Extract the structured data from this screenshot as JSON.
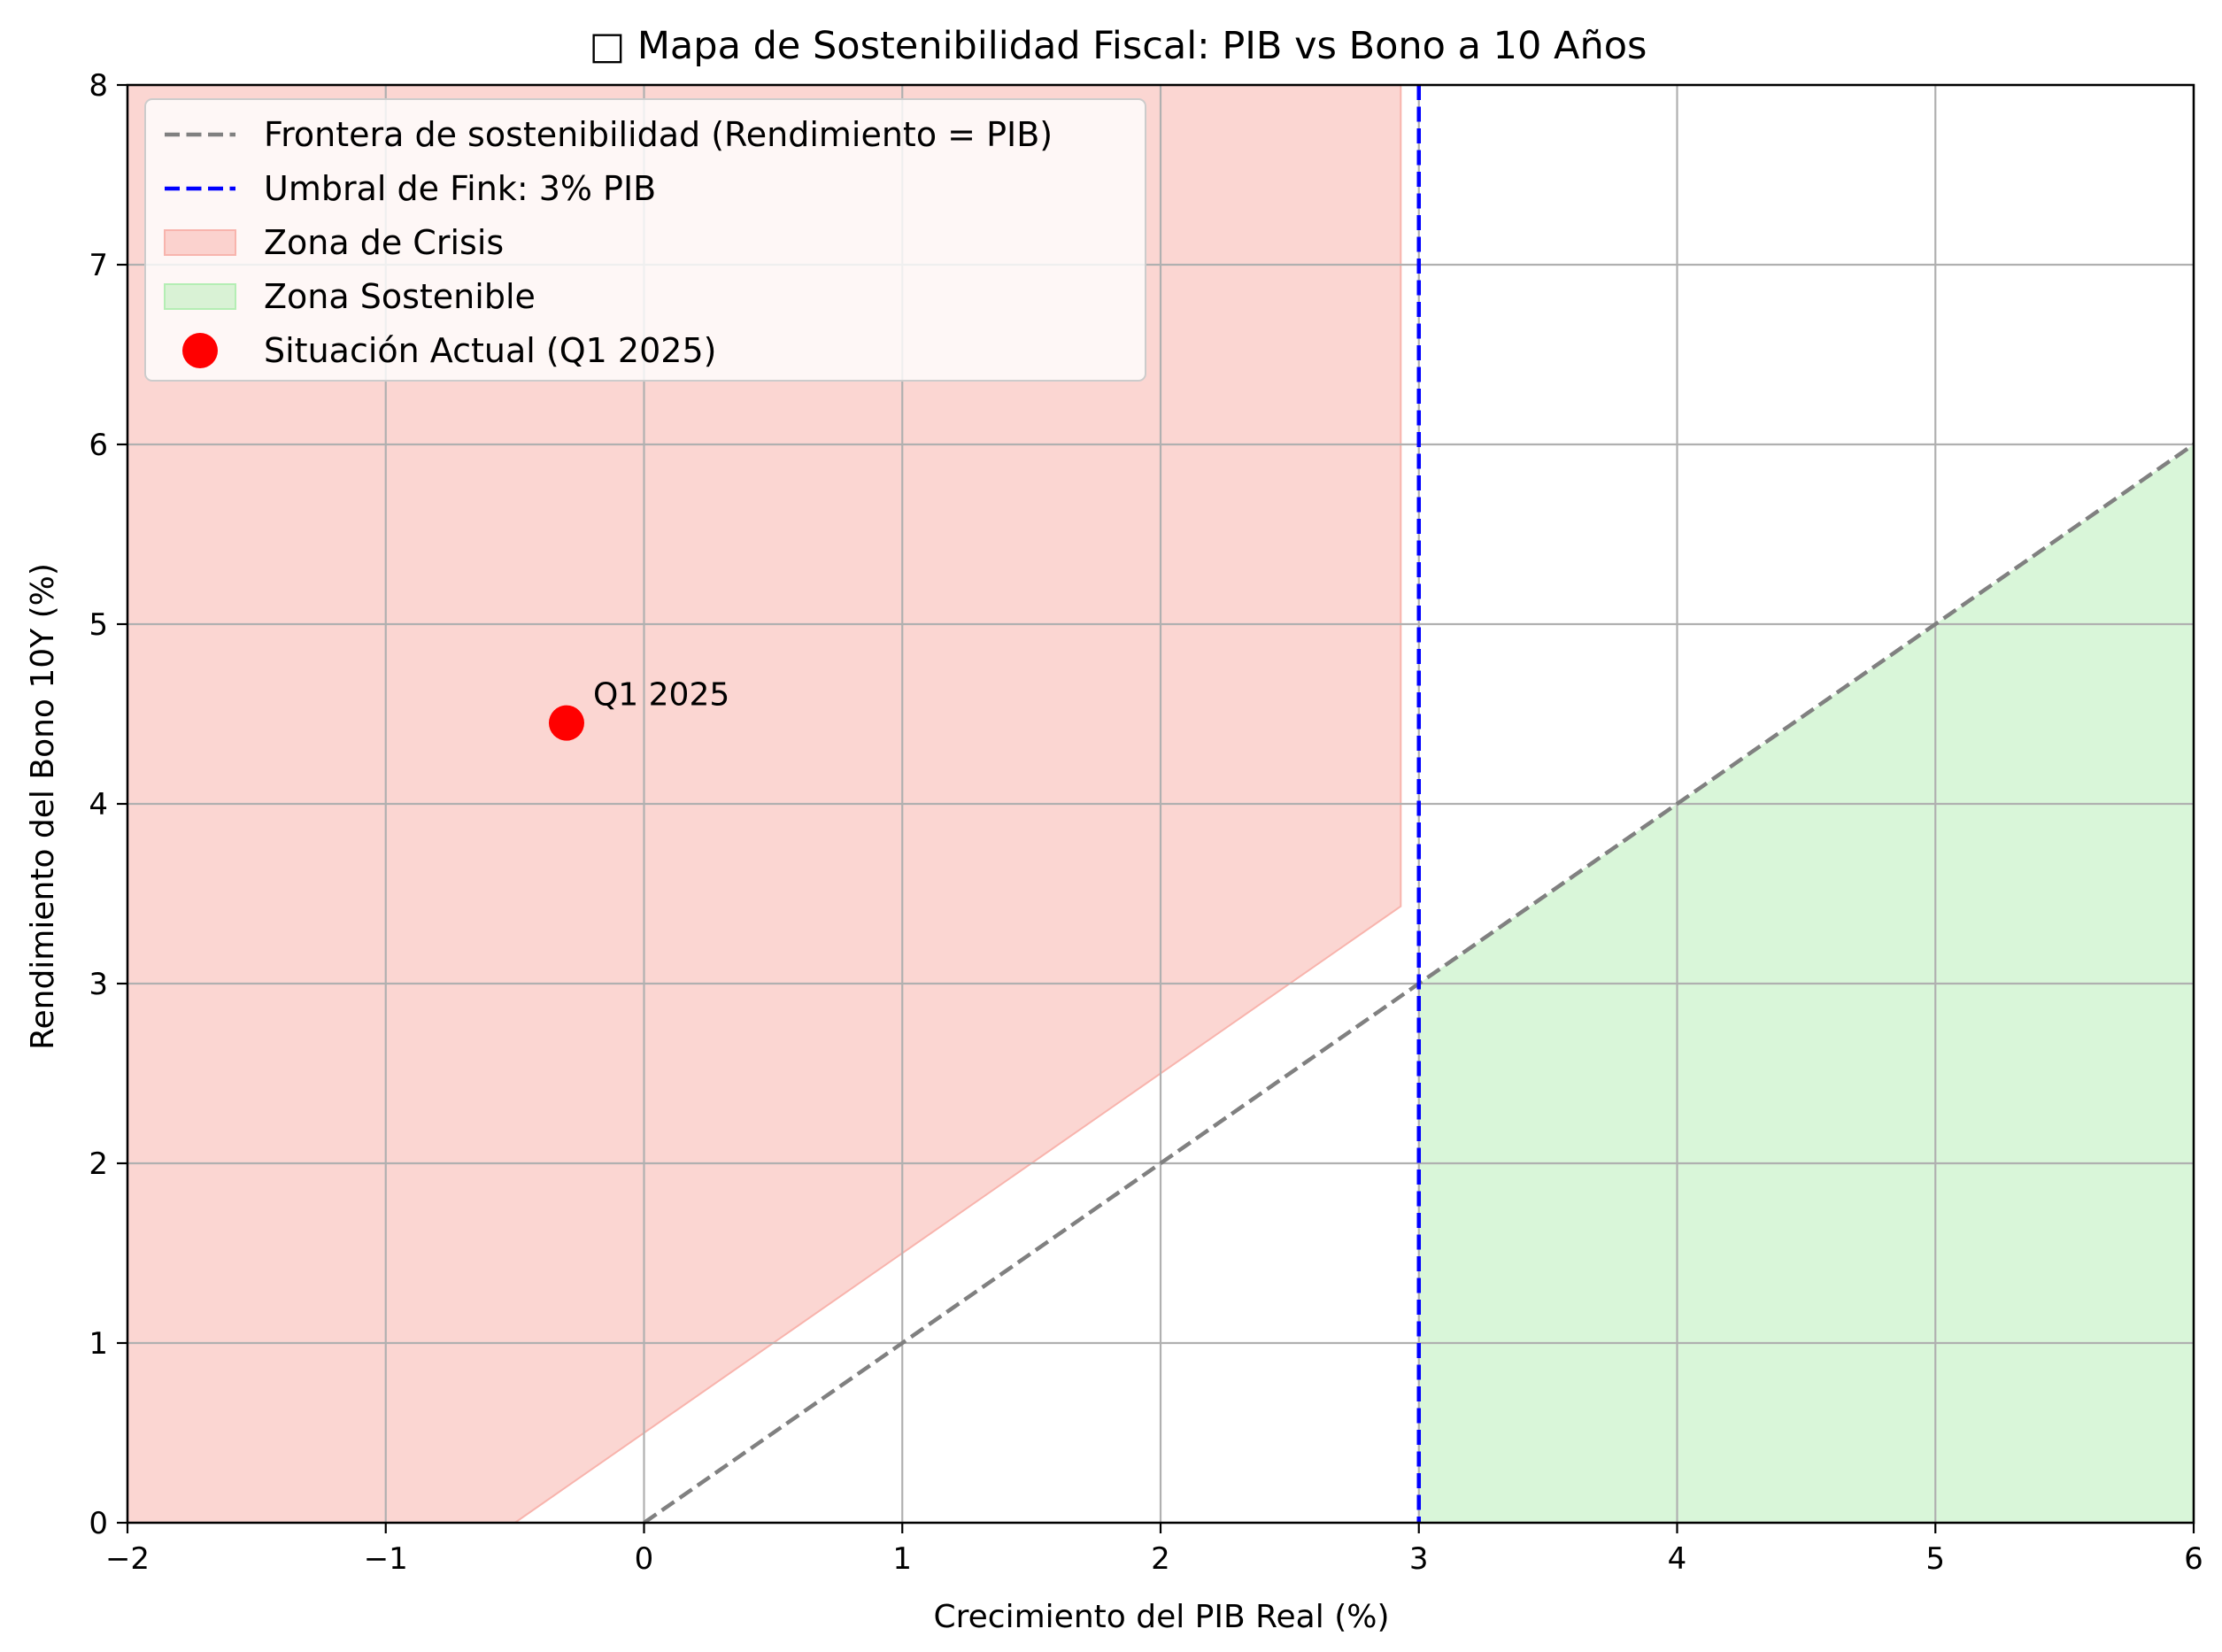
{
  "chart_data": {
    "type": "line",
    "title": "□ Mapa de Sostenibilidad Fiscal: PIB vs Bono a 10 Años",
    "xlabel": "Crecimiento del PIB Real (%)",
    "ylabel": "Rendimiento del Bono 10Y (%)",
    "xlim": [
      -2,
      6
    ],
    "ylim": [
      0,
      8
    ],
    "xticks": [
      -2,
      -1,
      0,
      1,
      2,
      3,
      4,
      5,
      6
    ],
    "xtick_labels": [
      "−2",
      "−1",
      "0",
      "1",
      "2",
      "3",
      "4",
      "5",
      "6"
    ],
    "yticks": [
      0,
      1,
      2,
      3,
      4,
      5,
      6,
      7,
      8
    ],
    "ytick_labels": [
      "0",
      "1",
      "2",
      "3",
      "4",
      "5",
      "6",
      "7",
      "8"
    ],
    "grid": true,
    "legend_position": "top-left",
    "frontier": {
      "name": "Frontera de sostenibilidad (Rendimiento = PIB)",
      "x": [
        0,
        6
      ],
      "y": [
        0,
        6
      ],
      "color": "#808080",
      "style": "dashed"
    },
    "threshold": {
      "name": "Umbral de Fink: 3% PIB",
      "x": 3,
      "color": "#0000ff",
      "style": "dashed"
    },
    "crisis_zone": {
      "name": "Zona de Crisis",
      "x_range": [
        -2,
        2.93
      ],
      "lower_bound": "y = x + 0.5",
      "upper_y": 8,
      "color": "#f8b4ad"
    },
    "sustainable_zone": {
      "name": "Zona Sostenible",
      "x_range": [
        3,
        6
      ],
      "lower_y": 0,
      "upper_bound": "y = x",
      "color": "#b4eeb4"
    },
    "current_point": {
      "name": "Situación Actual (Q1 2025)",
      "x": -0.3,
      "y": 4.45,
      "label": "Q1 2025",
      "color": "#ff0000"
    }
  }
}
